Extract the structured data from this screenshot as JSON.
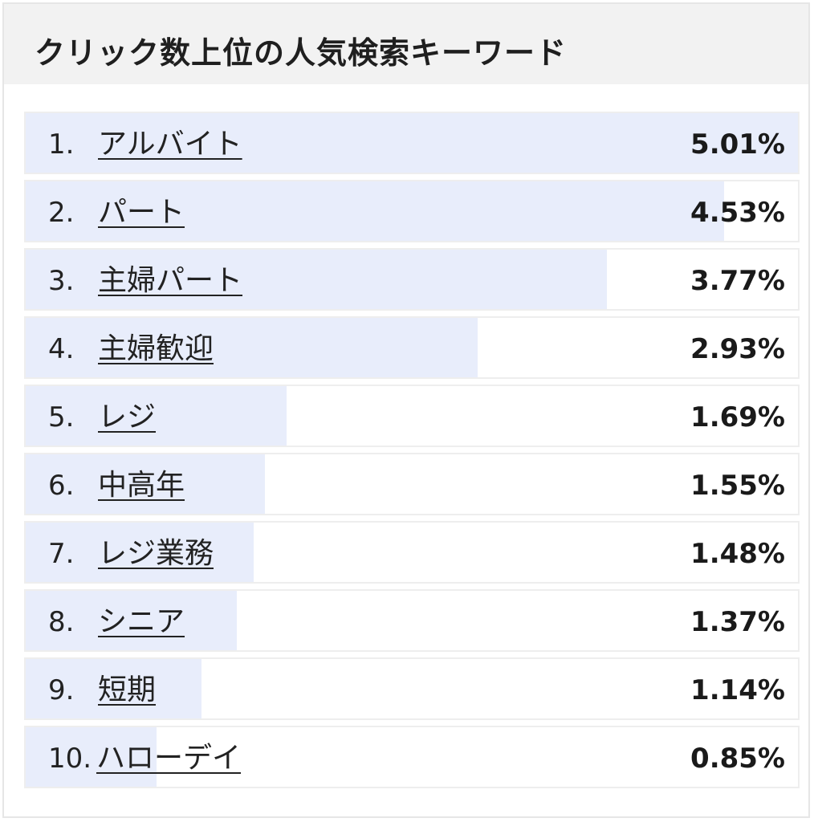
{
  "panel": {
    "title": "クリック数上位の人気検索キーワード"
  },
  "colors": {
    "header_bg": "#f2f2f2",
    "bar_fill": "#e8edfb",
    "row_border": "#eeeeee",
    "text": "#222222"
  },
  "ranking": [
    {
      "rank": "1.",
      "keyword": "アルバイト",
      "share_label": "5.01%",
      "share": 5.01
    },
    {
      "rank": "2.",
      "keyword": "パート",
      "share_label": "4.53%",
      "share": 4.53
    },
    {
      "rank": "3.",
      "keyword": "主婦パート",
      "share_label": "3.77%",
      "share": 3.77
    },
    {
      "rank": "4.",
      "keyword": "主婦歓迎",
      "share_label": "2.93%",
      "share": 2.93
    },
    {
      "rank": "5.",
      "keyword": "レジ",
      "share_label": "1.69%",
      "share": 1.69
    },
    {
      "rank": "6.",
      "keyword": "中高年",
      "share_label": "1.55%",
      "share": 1.55
    },
    {
      "rank": "7.",
      "keyword": "レジ業務",
      "share_label": "1.48%",
      "share": 1.48
    },
    {
      "rank": "8.",
      "keyword": "シニア",
      "share_label": "1.37%",
      "share": 1.37
    },
    {
      "rank": "9.",
      "keyword": "短期",
      "share_label": "1.14%",
      "share": 1.14
    },
    {
      "rank": "10.",
      "keyword": "ハローデイ",
      "share_label": "0.85%",
      "share": 0.85
    }
  ]
}
